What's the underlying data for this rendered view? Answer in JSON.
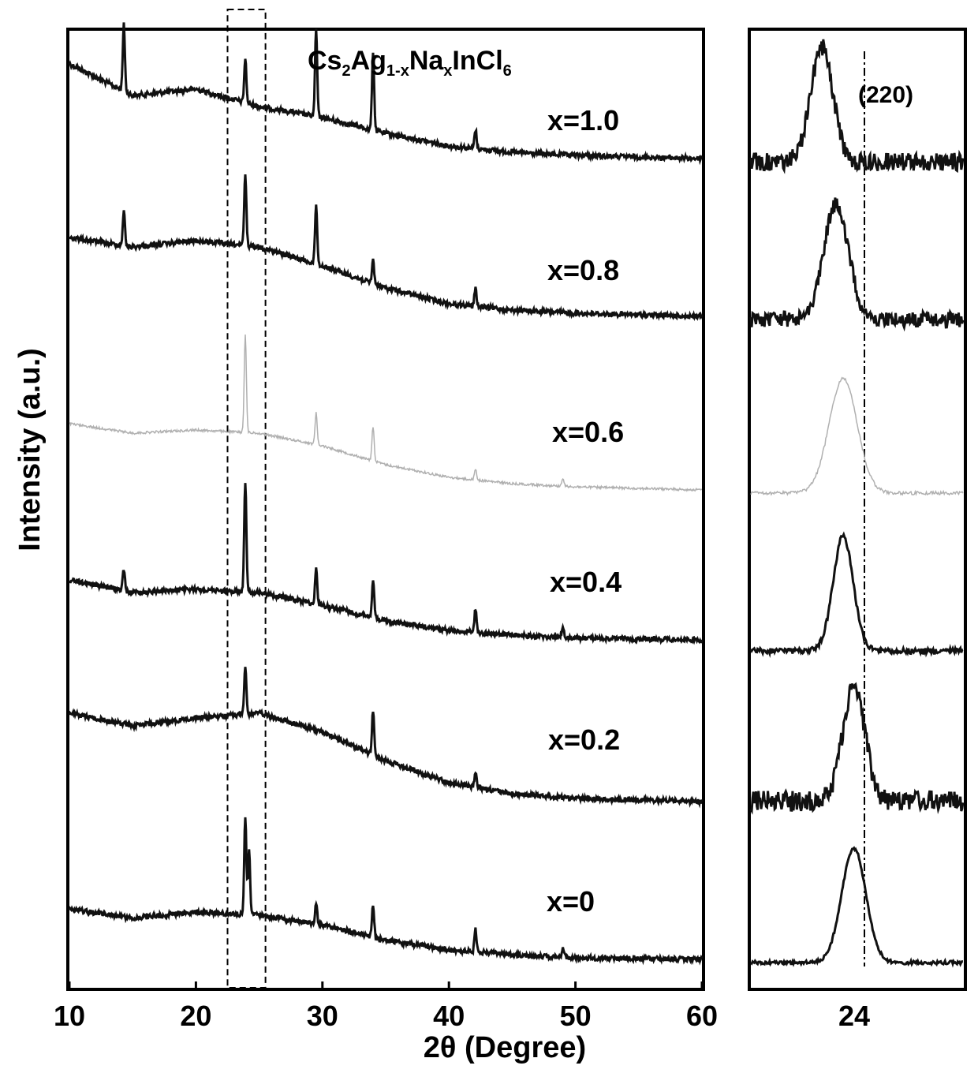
{
  "chart_data": [
    {
      "type": "line",
      "title": "Cs2Ag1-xNaxInCl6",
      "xlabel": "2θ (Degree)",
      "ylabel": "Intensity (a.u.)",
      "xlim": [
        10,
        60
      ],
      "xticks": [
        10,
        20,
        30,
        40,
        50,
        60
      ],
      "highlight_region": [
        22.5,
        25.5
      ],
      "grid": false,
      "legend": "none",
      "series": [
        {
          "name": "x=1.0",
          "color": "#111111",
          "peaks": [
            [
              14.3,
              0.42
            ],
            [
              23.9,
              0.28
            ],
            [
              29.5,
              0.55
            ],
            [
              34.0,
              0.5
            ],
            [
              42.1,
              0.12
            ]
          ],
          "baseline": [
            [
              10,
              0.62
            ],
            [
              15,
              0.42
            ],
            [
              20,
              0.46
            ],
            [
              25,
              0.35
            ],
            [
              30,
              0.28
            ],
            [
              35,
              0.18
            ],
            [
              40,
              0.1
            ],
            [
              45,
              0.06
            ],
            [
              50,
              0.04
            ],
            [
              60,
              0.02
            ]
          ]
        },
        {
          "name": "x=0.8",
          "color": "#111111",
          "peaks": [
            [
              14.3,
              0.22
            ],
            [
              23.9,
              0.45
            ],
            [
              29.5,
              0.38
            ],
            [
              34.0,
              0.15
            ],
            [
              42.1,
              0.12
            ]
          ],
          "baseline": [
            [
              10,
              0.52
            ],
            [
              15,
              0.46
            ],
            [
              20,
              0.5
            ],
            [
              25,
              0.46
            ],
            [
              30,
              0.34
            ],
            [
              35,
              0.2
            ],
            [
              40,
              0.1
            ],
            [
              45,
              0.06
            ],
            [
              50,
              0.04
            ],
            [
              60,
              0.02
            ]
          ]
        },
        {
          "name": "x=0.6",
          "color": "#b0b0b0",
          "peaks": [
            [
              23.9,
              0.62
            ],
            [
              29.5,
              0.2
            ],
            [
              34.0,
              0.22
            ],
            [
              42.1,
              0.07
            ],
            [
              49.0,
              0.05
            ]
          ],
          "baseline": [
            [
              10,
              0.44
            ],
            [
              15,
              0.38
            ],
            [
              20,
              0.4
            ],
            [
              25,
              0.38
            ],
            [
              30,
              0.3
            ],
            [
              35,
              0.18
            ],
            [
              40,
              0.1
            ],
            [
              45,
              0.06
            ],
            [
              50,
              0.04
            ],
            [
              60,
              0.02
            ]
          ]
        },
        {
          "name": "x=0.4",
          "color": "#111111",
          "peaks": [
            [
              14.3,
              0.14
            ],
            [
              23.9,
              0.7
            ],
            [
              29.5,
              0.22
            ],
            [
              34.0,
              0.25
            ],
            [
              42.1,
              0.15
            ],
            [
              49.0,
              0.07
            ]
          ],
          "baseline": [
            [
              10,
              0.4
            ],
            [
              15,
              0.32
            ],
            [
              20,
              0.34
            ],
            [
              25,
              0.32
            ],
            [
              30,
              0.24
            ],
            [
              35,
              0.14
            ],
            [
              40,
              0.08
            ],
            [
              45,
              0.05
            ],
            [
              50,
              0.03
            ],
            [
              60,
              0.02
            ]
          ]
        },
        {
          "name": "x=0.2",
          "color": "#111111",
          "peaks": [
            [
              23.9,
              0.3
            ],
            [
              34.0,
              0.28
            ],
            [
              42.1,
              0.1
            ]
          ],
          "baseline": [
            [
              10,
              0.58
            ],
            [
              15,
              0.5
            ],
            [
              20,
              0.55
            ],
            [
              25,
              0.58
            ],
            [
              30,
              0.46
            ],
            [
              35,
              0.28
            ],
            [
              40,
              0.14
            ],
            [
              45,
              0.07
            ],
            [
              50,
              0.04
            ],
            [
              60,
              0.02
            ]
          ]
        },
        {
          "name": "x=0",
          "color": "#111111",
          "peaks": [
            [
              23.9,
              0.62
            ],
            [
              24.2,
              0.4
            ],
            [
              29.5,
              0.12
            ],
            [
              34.0,
              0.2
            ],
            [
              42.1,
              0.14
            ],
            [
              49.0,
              0.06
            ]
          ],
          "baseline": [
            [
              10,
              0.34
            ],
            [
              15,
              0.28
            ],
            [
              20,
              0.32
            ],
            [
              25,
              0.3
            ],
            [
              30,
              0.24
            ],
            [
              35,
              0.14
            ],
            [
              40,
              0.08
            ],
            [
              45,
              0.05
            ],
            [
              50,
              0.03
            ],
            [
              60,
              0.02
            ]
          ]
        }
      ],
      "labels": [
        "x=1.0",
        "x=0.8",
        "x=0.6",
        "x=0.4",
        "x=0.2",
        "x=0"
      ]
    },
    {
      "type": "line",
      "xlim": [
        22.5,
        25.5
      ],
      "xticks": [
        24
      ],
      "reference_line_x": 24.1,
      "annotation": "(220)",
      "series": [
        {
          "name": "x=1.0",
          "color": "#111111",
          "peak_center": 23.5,
          "peak_width": 0.22,
          "noise": 0.16
        },
        {
          "name": "x=0.8",
          "color": "#111111",
          "peak_center": 23.7,
          "peak_width": 0.25,
          "noise": 0.14
        },
        {
          "name": "x=0.6",
          "color": "#b0b0b0",
          "peak_center": 23.8,
          "peak_width": 0.28,
          "noise": 0.03
        },
        {
          "name": "x=0.4",
          "color": "#111111",
          "peak_center": 23.8,
          "peak_width": 0.2,
          "noise": 0.05
        },
        {
          "name": "x=0.2",
          "color": "#111111",
          "peak_center": 23.95,
          "peak_width": 0.22,
          "noise": 0.18
        },
        {
          "name": "x=0",
          "color": "#111111",
          "peak_center": 23.95,
          "peak_width": 0.24,
          "noise": 0.03
        }
      ]
    }
  ],
  "labels": {
    "title_main": "Cs",
    "title_sub1": "2",
    "title_mid1": "Ag",
    "title_sub2": "1-x",
    "title_mid2": "Na",
    "title_sub3": "x",
    "title_mid3": "InCl",
    "title_sub4": "6",
    "xlabel": "2θ (Degree)",
    "ylabel": "Intensity (a.u.)",
    "right_annotation": "(220)",
    "right_tick": "24"
  }
}
